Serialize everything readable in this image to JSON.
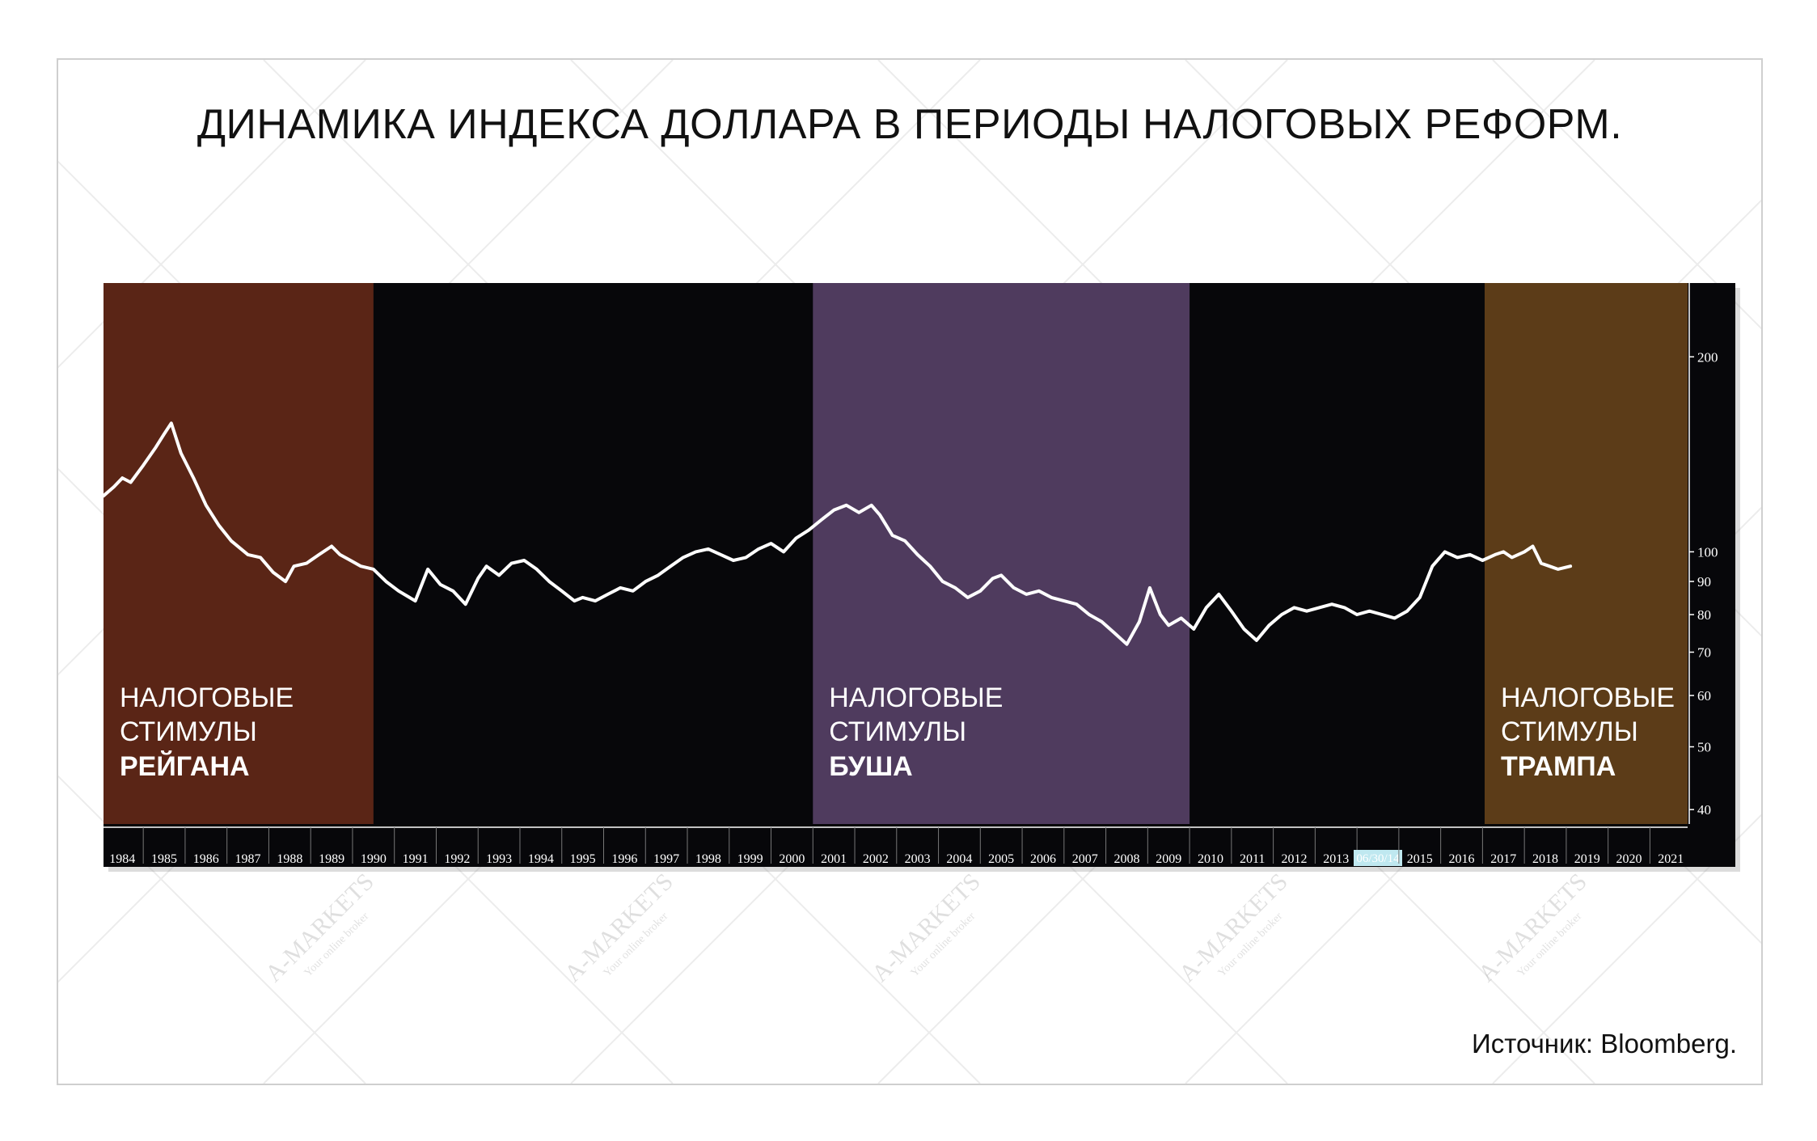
{
  "title": "ДИНАМИКА ИНДЕКСА ДОЛЛАРА В ПЕРИОДЫ НАЛОГОВЫХ РЕФОРМ.",
  "source": "Источник: Bloomberg.",
  "watermark": {
    "brand": "A-MARKETS",
    "tagline": "Your online broker"
  },
  "colors": {
    "plot_bg": "#07070a",
    "reagan": "#5a2516",
    "bush": "#4f3b5e",
    "trump": "#5c3c18",
    "line": "#ffffff",
    "axis_marker": "#bfe8f0"
  },
  "periods": [
    {
      "id": "reagan",
      "line1": "НАЛОГОВЫЕ",
      "line2": "СТИМУЛЫ",
      "name": "РЕЙГАНА",
      "from": 1983.55,
      "to": 1990.0
    },
    {
      "id": "bush",
      "line1": "НАЛОГОВЫЕ",
      "line2": "СТИМУЛЫ",
      "name": "БУША",
      "from": 2000.5,
      "to": 2009.5
    },
    {
      "id": "trump",
      "line1": "НАЛОГОВЫЕ",
      "line2": "СТИМУЛЫ",
      "name": "ТРАМПА",
      "from": 2016.55,
      "to": 2021.4
    }
  ],
  "axis_marker_label": "06/30/14",
  "chart_data": {
    "type": "line",
    "title": "ДИНАМИКА ИНДЕКСА ДОЛЛАРА В ПЕРИОДЫ НАЛОГОВЫХ РЕФОРМ.",
    "scale": "log",
    "xlim": [
      1983.55,
      2021.4
    ],
    "ylim": [
      38,
      260
    ],
    "x_ticks": [
      1984,
      1985,
      1986,
      1987,
      1988,
      1989,
      1990,
      1991,
      1992,
      1993,
      1994,
      1995,
      1996,
      1997,
      1998,
      1999,
      2000,
      2001,
      2002,
      2003,
      2004,
      2005,
      2006,
      2007,
      2008,
      2009,
      2010,
      2011,
      2012,
      2013,
      2014,
      2015,
      2016,
      2017,
      2018,
      2019,
      2020,
      2021
    ],
    "x_tick_labels": [
      "1984",
      "1985",
      "1986",
      "1987",
      "1988",
      "1989",
      "1990",
      "1991",
      "1992",
      "1993",
      "1994",
      "1995",
      "1996",
      "1997",
      "1998",
      "1999",
      "2000",
      "2001",
      "2002",
      "2003",
      "2004",
      "2005",
      "2006",
      "2007",
      "2008",
      "2009",
      "2010",
      "2011",
      "2012",
      "2013",
      "06/30/14",
      "2015",
      "2016",
      "2017",
      "2018",
      "2019",
      "2020",
      "2021"
    ],
    "y_ticks": [
      40,
      50,
      60,
      70,
      80,
      90,
      100,
      200
    ],
    "grid": false,
    "series": [
      {
        "x": [
          1983.55,
          1983.8,
          1984.0,
          1984.2,
          1984.5,
          1984.8,
          1985.0,
          1985.17,
          1985.4,
          1985.7,
          1986.0,
          1986.3,
          1986.6,
          1987.0,
          1987.3,
          1987.6,
          1987.9,
          1988.1,
          1988.4,
          1988.7,
          1989.0,
          1989.2,
          1989.45,
          1989.7,
          1990.0,
          1990.3,
          1990.6,
          1991.0,
          1991.3,
          1991.6,
          1991.9,
          1992.2,
          1992.5,
          1992.7,
          1993.0,
          1993.3,
          1993.6,
          1993.9,
          1994.2,
          1994.5,
          1994.8,
          1995.0,
          1995.3,
          1995.6,
          1995.9,
          1996.2,
          1996.5,
          1996.8,
          1997.1,
          1997.4,
          1997.7,
          1998.0,
          1998.3,
          1998.6,
          1998.9,
          1999.2,
          1999.5,
          1999.8,
          2000.1,
          2000.4,
          2000.7,
          2001.0,
          2001.3,
          2001.6,
          2001.9,
          2002.1,
          2002.4,
          2002.7,
          2003.0,
          2003.3,
          2003.6,
          2003.9,
          2004.2,
          2004.5,
          2004.8,
          2005.0,
          2005.3,
          2005.6,
          2005.9,
          2006.2,
          2006.5,
          2006.8,
          2007.1,
          2007.4,
          2007.7,
          2008.0,
          2008.3,
          2008.55,
          2008.8,
          2009.0,
          2009.3,
          2009.6,
          2009.9,
          2010.2,
          2010.5,
          2010.8,
          2011.1,
          2011.4,
          2011.7,
          2012.0,
          2012.3,
          2012.6,
          2012.9,
          2013.2,
          2013.5,
          2013.8,
          2014.1,
          2014.4,
          2014.7,
          2015.0,
          2015.3,
          2015.6,
          2015.9,
          2016.2,
          2016.5,
          2016.8,
          2017.0,
          2017.2,
          2017.5,
          2017.7,
          2017.9,
          2018.1,
          2018.3,
          2018.6
        ],
        "y": [
          122,
          126,
          130,
          128,
          136,
          145,
          152,
          158,
          142,
          130,
          118,
          110,
          104,
          99,
          98,
          93,
          90,
          95,
          96,
          99,
          102,
          99,
          97,
          95,
          94,
          90,
          87,
          84,
          94,
          89,
          87,
          83,
          91,
          95,
          92,
          96,
          97,
          94,
          90,
          87,
          84,
          85,
          84,
          86,
          88,
          87,
          90,
          92,
          95,
          98,
          100,
          101,
          99,
          97,
          98,
          101,
          103,
          100,
          105,
          108,
          112,
          116,
          118,
          115,
          118,
          114,
          106,
          104,
          99,
          95,
          90,
          88,
          85,
          87,
          91,
          92,
          88,
          86,
          87,
          85,
          84,
          83,
          80,
          78,
          75,
          72,
          78,
          88,
          80,
          77,
          79,
          76,
          82,
          86,
          81,
          76,
          73,
          77,
          80,
          82,
          81,
          82,
          83,
          82,
          80,
          81,
          80,
          79,
          81,
          85,
          95,
          100,
          98,
          99,
          97,
          99,
          100,
          98,
          100,
          102,
          96,
          95,
          94,
          95
        ]
      }
    ]
  }
}
